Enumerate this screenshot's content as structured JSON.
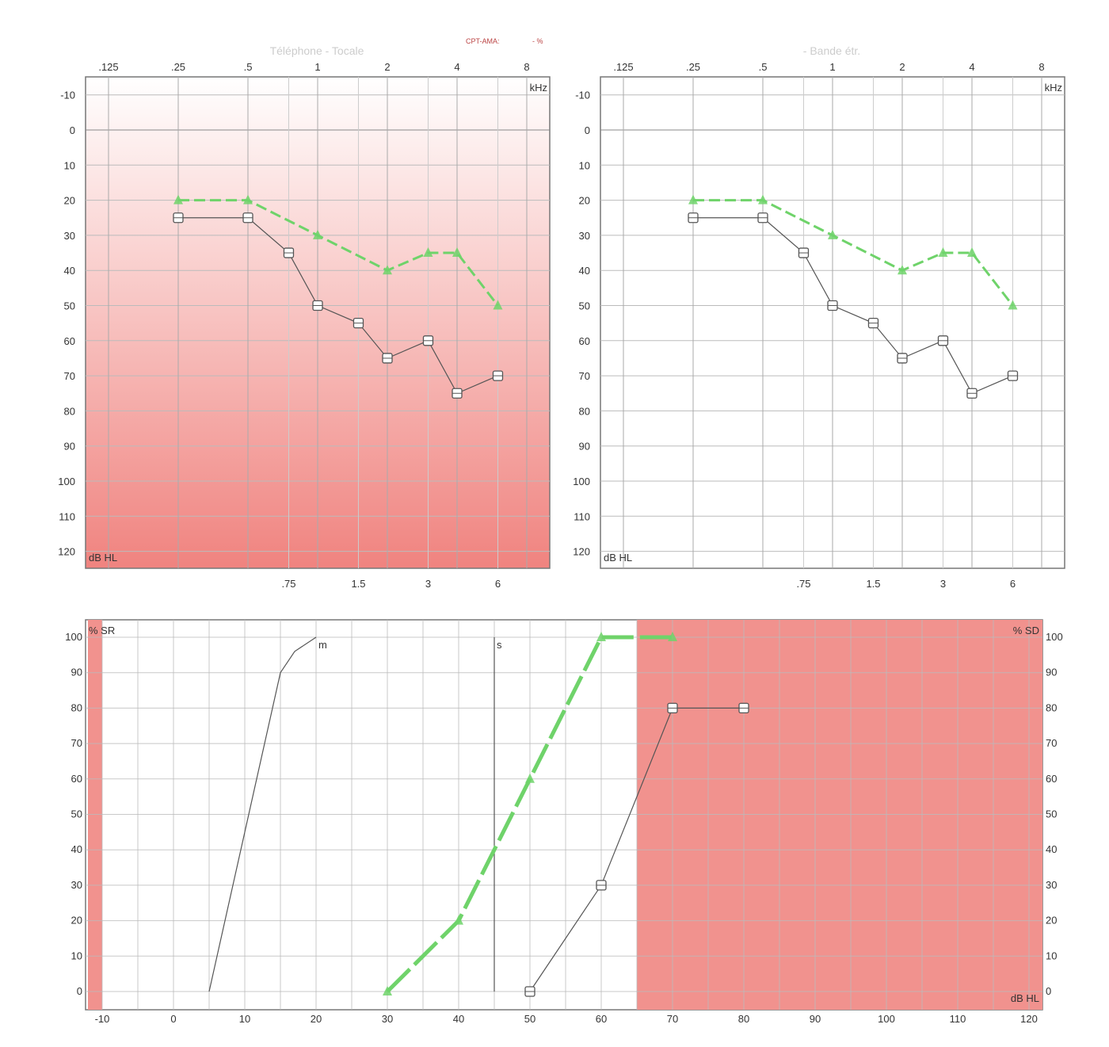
{
  "header": {
    "cpt_label": "CPT-AMA:",
    "cpt_value": "- %"
  },
  "colors": {
    "pink_top": "#fdf3f3",
    "pink_bottom": "#f0837f",
    "green": "#6fd36a",
    "marker": "#555",
    "shade": "#f1928e"
  },
  "chart_data": [
    {
      "type": "line",
      "title": "Téléphone - Tocale",
      "xlabel": "kHz",
      "ylabel": "dB HL",
      "x_scale": "log",
      "background": "pink-gradient",
      "x_ticks_top": [
        ".125",
        ".25",
        ".5",
        "1",
        "2",
        "4",
        "8"
      ],
      "x_ticks_bottom": [
        ".75",
        "1.5",
        "3",
        "6"
      ],
      "y_ticks": [
        "-10",
        "0",
        "10",
        "20",
        "30",
        "40",
        "50",
        "60",
        "70",
        "80",
        "90",
        "100",
        "110",
        "120"
      ],
      "ylim": [
        -10,
        120
      ],
      "y_inverted": true,
      "grid": true,
      "series": [
        {
          "marker": "triangle",
          "color": "green",
          "x": [
            0.25,
            0.5,
            1,
            2,
            3,
            4,
            6
          ],
          "y": [
            20,
            20,
            30,
            40,
            35,
            35,
            50
          ]
        },
        {
          "marker": "square",
          "color": "gray",
          "x": [
            0.25,
            0.5,
            0.75,
            1,
            1.5,
            2,
            3,
            4,
            6
          ],
          "y": [
            25,
            25,
            35,
            50,
            55,
            65,
            60,
            75,
            70
          ]
        }
      ]
    },
    {
      "type": "line",
      "title": "- Bande étr.",
      "xlabel": "kHz",
      "ylabel": "dB HL",
      "x_scale": "log",
      "background": "white",
      "x_ticks_top": [
        ".125",
        ".25",
        ".5",
        "1",
        "2",
        "4",
        "8"
      ],
      "x_ticks_bottom": [
        ".75",
        "1.5",
        "3",
        "6"
      ],
      "y_ticks": [
        "-10",
        "0",
        "10",
        "20",
        "30",
        "40",
        "50",
        "60",
        "70",
        "80",
        "90",
        "100",
        "110",
        "120"
      ],
      "ylim": [
        -10,
        120
      ],
      "y_inverted": true,
      "grid": true,
      "series": [
        {
          "marker": "triangle",
          "color": "green",
          "x": [
            0.25,
            0.5,
            1,
            2,
            3,
            4,
            6
          ],
          "y": [
            20,
            20,
            30,
            40,
            35,
            35,
            50
          ]
        },
        {
          "marker": "square",
          "color": "gray",
          "x": [
            0.25,
            0.5,
            0.75,
            1,
            1.5,
            2,
            3,
            4,
            6
          ],
          "y": [
            25,
            25,
            35,
            50,
            55,
            65,
            60,
            75,
            70
          ]
        }
      ]
    },
    {
      "type": "line",
      "ylabel": "% SR",
      "ylabel_right": "% SD",
      "xlabel": "dB HL",
      "x_ticks": [
        "-10",
        "0",
        "10",
        "20",
        "30",
        "40",
        "50",
        "60",
        "70",
        "80",
        "90",
        "100",
        "110",
        "120"
      ],
      "xlim": [
        -12,
        123
      ],
      "ylim": [
        0,
        100
      ],
      "y_ticks": [
        "0",
        "10",
        "20",
        "30",
        "40",
        "50",
        "60",
        "70",
        "80",
        "90",
        "100"
      ],
      "y_ticks_right": [
        "100",
        "90",
        "80",
        "70",
        "60",
        "50",
        "40",
        "30",
        "20",
        "10",
        "0"
      ],
      "shaded_x_ranges": [
        [
          -12,
          -10
        ],
        [
          65,
          123
        ]
      ],
      "grid": true,
      "reference_curves": [
        {
          "name": "m",
          "x": [
            5,
            10,
            15,
            17,
            20
          ],
          "y": [
            0,
            45,
            90,
            96,
            100
          ]
        },
        {
          "name": "s",
          "x": [
            45,
            45
          ],
          "y": [
            0,
            100
          ]
        }
      ],
      "series": [
        {
          "marker": "triangle",
          "color": "green",
          "x": [
            30,
            40,
            50,
            60,
            70
          ],
          "y": [
            0,
            20,
            60,
            100,
            100
          ]
        },
        {
          "marker": "square",
          "color": "gray",
          "x": [
            50,
            60,
            70,
            80
          ],
          "y": [
            0,
            30,
            80,
            80
          ]
        }
      ]
    }
  ]
}
